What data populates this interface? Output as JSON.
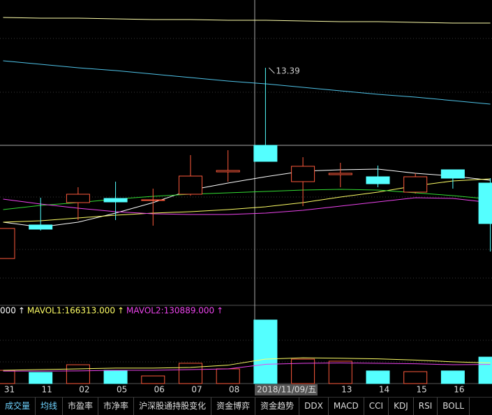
{
  "chart_data": [
    {
      "type": "candlestick",
      "categories": [
        "31",
        "11",
        "02",
        "05",
        "06",
        "07",
        "08",
        "2018/11/09/五",
        null,
        "13",
        "14",
        "15",
        "16",
        null
      ],
      "open": [
        10.66,
        11.14,
        11.46,
        11.52,
        11.49,
        11.58,
        11.9,
        12.28,
        11.76,
        11.86,
        11.83,
        11.61,
        11.93,
        11.74
      ],
      "high": [
        11.09,
        11.53,
        11.68,
        11.76,
        11.66,
        12.14,
        12.21,
        13.39,
        12.11,
        12.03,
        11.99,
        11.88,
        11.93,
        11.81
      ],
      "low": [
        10.66,
        11.06,
        11.21,
        11.21,
        11.13,
        11.56,
        11.76,
        12.05,
        11.41,
        11.68,
        11.68,
        11.59,
        11.66,
        10.76
      ],
      "close": [
        11.09,
        11.08,
        11.58,
        11.47,
        11.5,
        11.84,
        11.92,
        12.05,
        11.98,
        11.88,
        11.73,
        11.83,
        11.81,
        11.16
      ],
      "up_color": "#ff5a3c",
      "down_color": "#54ffff",
      "lines": [
        {
          "color": "#ffffff",
          "values": [
            11.18,
            11.11,
            11.18,
            11.31,
            11.46,
            11.64,
            11.74,
            11.83,
            11.91,
            11.93,
            11.94,
            11.88,
            11.84,
            11.78
          ]
        },
        {
          "color": "#ffff66",
          "values": [
            11.18,
            11.2,
            11.24,
            11.28,
            11.31,
            11.33,
            11.36,
            11.4,
            11.46,
            11.54,
            11.61,
            11.7,
            11.77,
            11.8
          ]
        },
        {
          "color": "#33dd33",
          "values": [
            11.36,
            11.42,
            11.46,
            11.51,
            11.55,
            11.58,
            11.6,
            11.62,
            11.64,
            11.65,
            11.64,
            11.6,
            11.56,
            11.51
          ]
        },
        {
          "color": "#ee44ee",
          "values": [
            11.51,
            11.44,
            11.38,
            11.33,
            11.3,
            11.29,
            11.29,
            11.31,
            11.35,
            11.41,
            11.47,
            11.53,
            11.52,
            11.46
          ]
        },
        {
          "color": "#ffffaa",
          "values": [
            14.11,
            14.1,
            14.1,
            14.09,
            14.08,
            14.08,
            14.07,
            14.07,
            14.06,
            14.05,
            14.05,
            14.04,
            14.03,
            14.03
          ]
        },
        {
          "color": "#4fc3e8",
          "values": [
            13.49,
            13.44,
            13.39,
            13.35,
            13.3,
            13.25,
            13.2,
            13.16,
            13.11,
            13.06,
            13.01,
            12.97,
            12.92,
            12.87
          ]
        }
      ]
    },
    {
      "type": "bar",
      "legend_lead": "000",
      "values": [
        90000,
        76000,
        128000,
        90000,
        52000,
        138000,
        100000,
        432000,
        166000,
        152000,
        86000,
        81000,
        86000,
        180000
      ],
      "series": [
        {
          "name": "MAVOL1:166313.000",
          "color": "#ffff66",
          "values": [
            90000,
            95000,
            100000,
            105000,
            105000,
            110000,
            125000,
            166313,
            175000,
            172000,
            168000,
            160000,
            148000,
            140000
          ]
        },
        {
          "name": "MAVOL2:130889.000",
          "color": "#ee44ee",
          "values": [
            85000,
            85000,
            86000,
            90000,
            90000,
            95000,
            100000,
            130889,
            138000,
            140000,
            138000,
            135000,
            128000,
            130000
          ]
        }
      ]
    }
  ],
  "tabs": [
    "成交量",
    "均线",
    "市盈率",
    "市净率",
    "沪深股通持股变化",
    "资金博弈",
    "资金趋势",
    "DDX",
    "MACD",
    "CCI",
    "KDJ",
    "RSI",
    "BOLL"
  ]
}
